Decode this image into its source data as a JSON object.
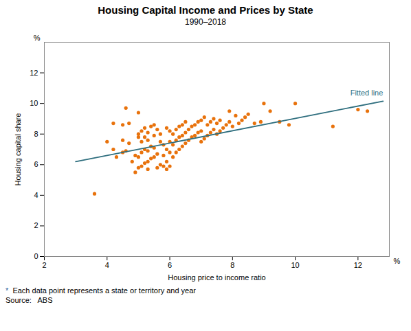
{
  "chart_data": {
    "type": "scatter",
    "title": "Housing Capital Income and Prices by State",
    "subtitle": "1990–2018",
    "xlabel": "Housing price to income ratio",
    "ylabel": "Housing capital share",
    "annotations": [
      {
        "axis": "y",
        "text": "%"
      },
      {
        "axis": "x",
        "text": "%"
      }
    ],
    "footnote": [
      "*",
      "Each data point represents a state or territory and year"
    ],
    "source": "Source:   ABS",
    "xlim": [
      2,
      13
    ],
    "ylim": [
      0,
      14
    ],
    "xticks": [
      2,
      4,
      6,
      8,
      10,
      12
    ],
    "yticks": [
      0,
      2,
      4,
      6,
      8,
      10,
      12
    ],
    "series": [
      {
        "type": "scatter",
        "color": "#e8720c",
        "x": [
          3.6,
          4.0,
          4.2,
          4.2,
          4.3,
          4.5,
          4.5,
          4.5,
          4.6,
          4.6,
          4.7,
          4.7,
          4.8,
          4.9,
          4.9,
          5.0,
          5.0,
          5.0,
          5.0,
          5.0,
          5.1,
          5.1,
          5.1,
          5.1,
          5.2,
          5.2,
          5.2,
          5.2,
          5.3,
          5.3,
          5.3,
          5.3,
          5.3,
          5.4,
          5.4,
          5.4,
          5.5,
          5.5,
          5.5,
          5.5,
          5.6,
          5.6,
          5.6,
          5.7,
          5.7,
          5.7,
          5.8,
          5.8,
          5.8,
          5.9,
          5.9,
          5.9,
          5.9,
          6.0,
          6.0,
          6.0,
          6.0,
          6.1,
          6.1,
          6.1,
          6.2,
          6.2,
          6.2,
          6.3,
          6.3,
          6.3,
          6.4,
          6.4,
          6.4,
          6.5,
          6.5,
          6.5,
          6.6,
          6.6,
          6.7,
          6.7,
          6.8,
          6.8,
          6.9,
          6.9,
          7.0,
          7.0,
          7.0,
          7.1,
          7.1,
          7.2,
          7.2,
          7.3,
          7.3,
          7.4,
          7.4,
          7.5,
          7.5,
          7.6,
          7.6,
          7.7,
          7.8,
          7.9,
          7.9,
          8.0,
          8.1,
          8.2,
          8.3,
          8.4,
          8.5,
          8.7,
          8.9,
          9.0,
          9.2,
          9.5,
          9.8,
          10.0,
          11.2,
          12.0,
          12.3
        ],
        "values": [
          4.1,
          7.5,
          8.7,
          7.0,
          6.5,
          7.6,
          8.6,
          6.8,
          6.9,
          9.7,
          7.4,
          8.7,
          6.2,
          5.5,
          6.6,
          5.8,
          6.5,
          7.8,
          8.0,
          9.4,
          5.9,
          6.8,
          7.5,
          8.2,
          6.1,
          7.0,
          7.8,
          8.4,
          5.7,
          6.2,
          6.9,
          7.6,
          8.1,
          6.4,
          7.2,
          8.5,
          6.5,
          7.1,
          7.9,
          8.6,
          5.8,
          6.7,
          8.3,
          6.0,
          7.5,
          8.0,
          5.9,
          6.6,
          7.3,
          5.7,
          6.2,
          7.0,
          8.4,
          5.9,
          6.8,
          7.5,
          8.2,
          6.5,
          7.3,
          8.0,
          6.8,
          7.6,
          8.3,
          7.0,
          7.8,
          8.5,
          7.2,
          7.9,
          8.6,
          7.4,
          8.1,
          8.8,
          7.6,
          8.3,
          7.8,
          8.5,
          7.9,
          8.6,
          8.1,
          8.8,
          7.5,
          8.2,
          8.9,
          7.7,
          9.1,
          7.9,
          8.6,
          8.1,
          8.8,
          8.3,
          9.0,
          8.0,
          8.7,
          8.2,
          8.9,
          8.4,
          8.6,
          8.8,
          9.5,
          8.5,
          9.2,
          8.7,
          8.9,
          9.1,
          9.3,
          8.7,
          8.8,
          10.0,
          9.5,
          8.8,
          8.6,
          10.0,
          8.5,
          9.6,
          9.5
        ]
      },
      {
        "type": "line",
        "name": "Fitted line",
        "color": "#2e6e7e",
        "x": [
          3.0,
          12.8
        ],
        "values": [
          6.2,
          10.15
        ]
      }
    ]
  }
}
